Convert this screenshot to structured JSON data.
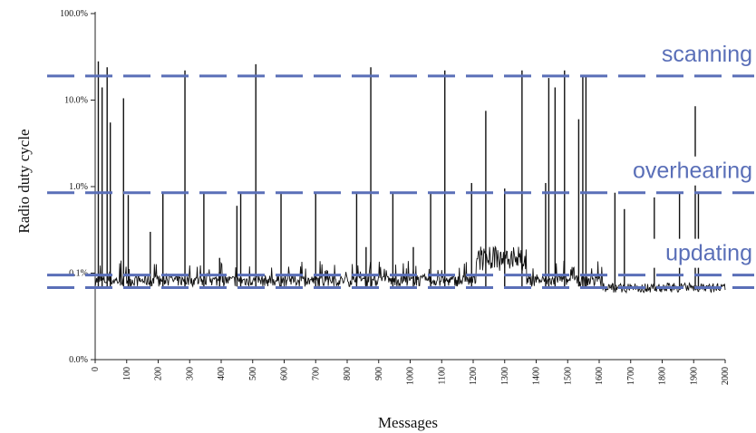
{
  "chart_data": {
    "type": "line",
    "xlabel": "Messages",
    "ylabel": "Radio duty cycle",
    "xlim": [
      0,
      2000
    ],
    "y_scale": "log",
    "ylim": [
      0.01,
      100
    ],
    "y_ticks": [
      {
        "value": 100,
        "label": "100.0%"
      },
      {
        "value": 10,
        "label": "10.0%"
      },
      {
        "value": 1,
        "label": "1.0%"
      },
      {
        "value": 0.1,
        "label": "0.1%"
      },
      {
        "value": 0.01,
        "label": "0.0%"
      }
    ],
    "x_ticks": [
      0,
      100,
      200,
      300,
      400,
      500,
      600,
      700,
      800,
      900,
      1000,
      1100,
      1200,
      1300,
      1400,
      1500,
      1600,
      1700,
      1800,
      1900,
      2000
    ],
    "baseline_percent": 0.07,
    "spikes": [
      {
        "x": 10,
        "y": 28
      },
      {
        "x": 22,
        "y": 14
      },
      {
        "x": 38,
        "y": 24
      },
      {
        "x": 48,
        "y": 5.5
      },
      {
        "x": 90,
        "y": 10.5
      },
      {
        "x": 105,
        "y": 0.8
      },
      {
        "x": 175,
        "y": 0.3
      },
      {
        "x": 215,
        "y": 0.85
      },
      {
        "x": 285,
        "y": 22
      },
      {
        "x": 345,
        "y": 0.85
      },
      {
        "x": 395,
        "y": 0.15
      },
      {
        "x": 450,
        "y": 0.6
      },
      {
        "x": 462,
        "y": 0.85
      },
      {
        "x": 510,
        "y": 26
      },
      {
        "x": 590,
        "y": 0.85
      },
      {
        "x": 700,
        "y": 0.85
      },
      {
        "x": 830,
        "y": 0.85
      },
      {
        "x": 860,
        "y": 0.2
      },
      {
        "x": 875,
        "y": 24
      },
      {
        "x": 945,
        "y": 0.85
      },
      {
        "x": 1010,
        "y": 0.2
      },
      {
        "x": 1065,
        "y": 0.85
      },
      {
        "x": 1110,
        "y": 22
      },
      {
        "x": 1195,
        "y": 1.1
      },
      {
        "x": 1240,
        "y": 7.5
      },
      {
        "x": 1300,
        "y": 0.95
      },
      {
        "x": 1355,
        "y": 22
      },
      {
        "x": 1430,
        "y": 1.1
      },
      {
        "x": 1440,
        "y": 18
      },
      {
        "x": 1460,
        "y": 14
      },
      {
        "x": 1490,
        "y": 22
      },
      {
        "x": 1535,
        "y": 6
      },
      {
        "x": 1548,
        "y": 19
      },
      {
        "x": 1558,
        "y": 19
      },
      {
        "x": 1650,
        "y": 0.85
      },
      {
        "x": 1680,
        "y": 0.55
      },
      {
        "x": 1775,
        "y": 0.75
      },
      {
        "x": 1855,
        "y": 0.85
      },
      {
        "x": 1905,
        "y": 8.5
      },
      {
        "x": 1915,
        "y": 0.85
      }
    ]
  },
  "bands": [
    {
      "label": "scanning",
      "value": 19
    },
    {
      "label": "overhearing",
      "value": 0.85
    },
    {
      "label": "updating",
      "value": 0.095
    },
    {
      "label": "",
      "value": 0.068
    }
  ],
  "colors": {
    "band": "#5a6fb8",
    "data": "#111111",
    "axis": "#222222"
  }
}
